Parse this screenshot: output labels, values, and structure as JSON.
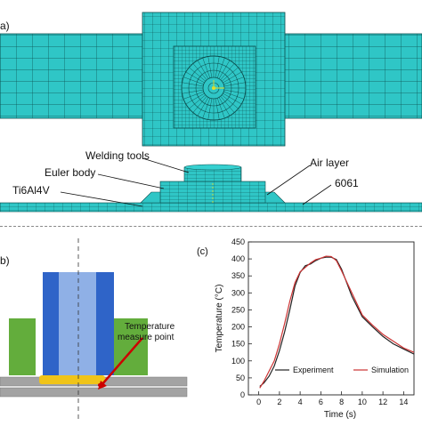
{
  "panel_a": {
    "label": "a)"
  },
  "panel_side": {
    "labels": {
      "welding_tools": "Welding tools",
      "euler_body": "Euler body",
      "ti_alloy": "Ti6Al4V",
      "air_layer": "Air layer",
      "al_alloy": "6061"
    }
  },
  "panel_b": {
    "label": "b)",
    "temp_point_line1": "Temperature",
    "temp_point_line2": "measure point"
  },
  "chart_data": {
    "panel_label": "(c)",
    "type": "line",
    "xlabel": "Time (s)",
    "ylabel": "Temperature (°C)",
    "xlim": [
      -1,
      15
    ],
    "ylim": [
      0,
      450
    ],
    "xticks": [
      0,
      2,
      4,
      6,
      8,
      10,
      12,
      14
    ],
    "yticks": [
      0,
      50,
      100,
      150,
      200,
      250,
      300,
      350,
      400,
      450
    ],
    "legend_position": "bottom-right",
    "series": [
      {
        "name": "Experiment",
        "color": "#222222",
        "x": [
          0.1,
          0.5,
          1.0,
          1.5,
          2.0,
          2.5,
          3.0,
          3.5,
          4.0,
          4.5,
          5.0,
          5.5,
          6.0,
          6.5,
          7.0,
          7.5,
          8.0,
          9.0,
          10.0,
          11.0,
          12.0,
          13.0,
          14.0,
          15.0
        ],
        "y": [
          25,
          35,
          55,
          85,
          130,
          185,
          250,
          320,
          360,
          380,
          385,
          395,
          402,
          405,
          405,
          398,
          370,
          290,
          230,
          200,
          172,
          150,
          135,
          120
        ]
      },
      {
        "name": "Simulation",
        "color": "#cc3333",
        "x": [
          0.1,
          0.5,
          1.0,
          1.5,
          2.0,
          2.5,
          3.0,
          3.5,
          4.0,
          4.5,
          5.0,
          5.5,
          6.0,
          6.5,
          7.0,
          7.5,
          8.0,
          9.0,
          10.0,
          11.0,
          12.0,
          13.0,
          14.0,
          15.0
        ],
        "y": [
          20,
          40,
          70,
          100,
          150,
          210,
          275,
          330,
          362,
          375,
          388,
          398,
          402,
          408,
          407,
          395,
          365,
          300,
          235,
          205,
          178,
          158,
          138,
          125
        ]
      }
    ]
  }
}
